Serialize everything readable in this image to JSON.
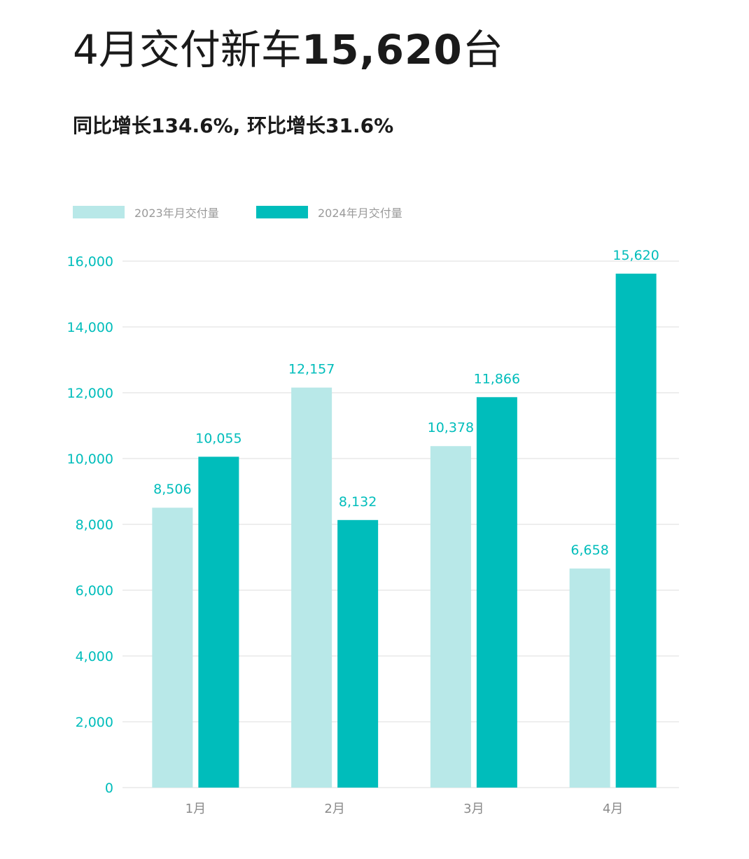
{
  "headline": {
    "prefix": "4月交付新车",
    "number": "15,620",
    "suffix": "台"
  },
  "subheadline": "同比增长134.6%, 环比增长31.6%",
  "colors": {
    "series_2023": "#b8e8e8",
    "series_2024": "#00bdbb",
    "axis_text": "#00bdbb",
    "category_text": "#8a8a8a",
    "legend_text": "#9a9a9a",
    "grid": "#dcdcdc"
  },
  "chart_data": {
    "type": "bar",
    "categories": [
      "1月",
      "2月",
      "3月",
      "4月"
    ],
    "series": [
      {
        "name": "2023年月交付量",
        "values": [
          8506,
          12157,
          10378,
          6658
        ],
        "labels": [
          "8,506",
          "12,157",
          "10,378",
          "6,658"
        ]
      },
      {
        "name": "2024年月交付量",
        "values": [
          10055,
          8132,
          11866,
          15620
        ],
        "labels": [
          "10,055",
          "8,132",
          "11,866",
          "15,620"
        ]
      }
    ],
    "ylim": [
      0,
      16000
    ],
    "yticks": [
      0,
      2000,
      4000,
      6000,
      8000,
      10000,
      12000,
      14000,
      16000
    ],
    "ytick_labels": [
      "0",
      "2,000",
      "4,000",
      "6,000",
      "8,000",
      "10,000",
      "12,000",
      "14,000",
      "16,000"
    ],
    "grid": true,
    "legend": "top-left"
  }
}
